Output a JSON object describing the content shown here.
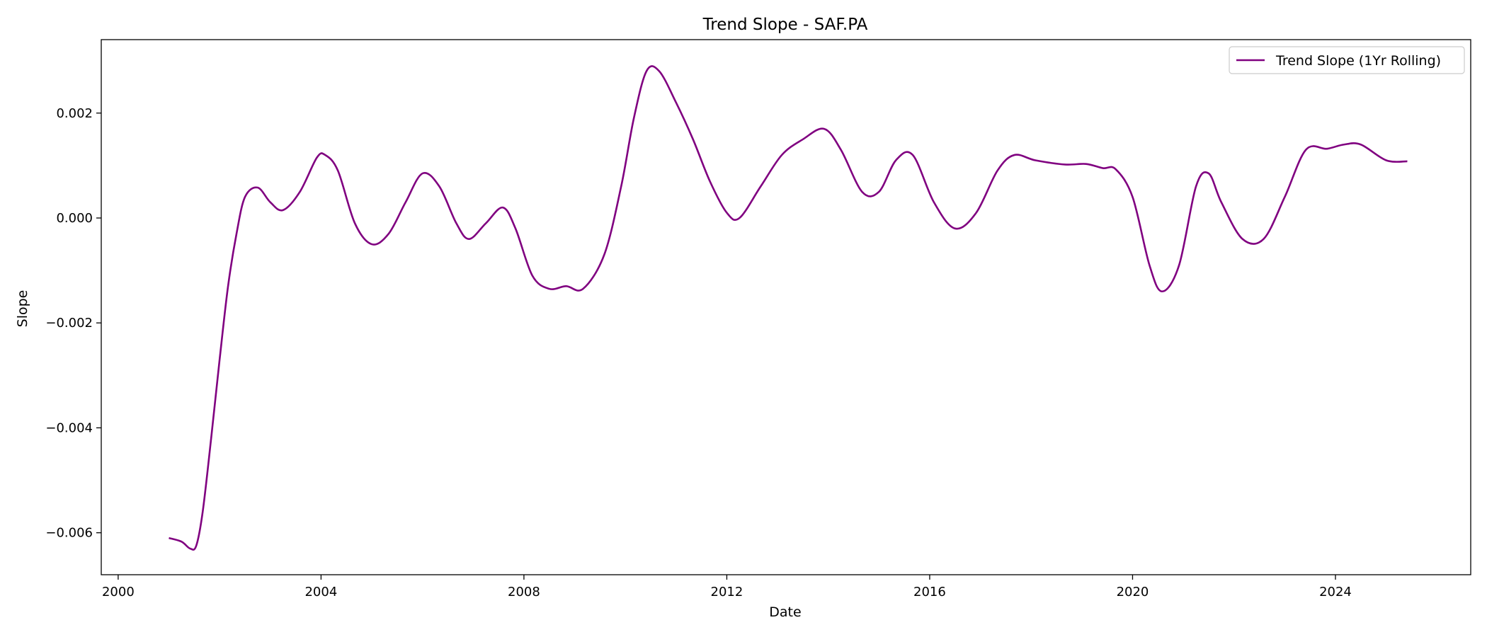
{
  "chart_data": {
    "type": "line",
    "title": "Trend Slope - SAF.PA",
    "xlabel": "Date",
    "ylabel": "Slope",
    "x_axis_type": "date",
    "xlim": [
      "1999-09-01",
      "2026-09-01"
    ],
    "ylim": [
      -0.0068,
      0.0034
    ],
    "x_ticks": [
      "2000",
      "2004",
      "2008",
      "2012",
      "2016",
      "2020",
      "2024"
    ],
    "y_ticks": [
      0.002,
      0.0,
      -0.002,
      -0.004,
      -0.006
    ],
    "y_tick_labels": [
      "0.002",
      "0.000",
      "−0.002",
      "−0.004",
      "−0.006"
    ],
    "grid": false,
    "legend_position": "top-right",
    "series": [
      {
        "name": "Trend Slope (1Yr Rolling)",
        "color": "#800080",
        "points": [
          [
            "2001-01-01",
            -0.0061
          ],
          [
            "2001-04-01",
            -0.00617
          ],
          [
            "2001-06-01",
            -0.0063
          ],
          [
            "2001-07-15",
            -0.00625
          ],
          [
            "2001-09-01",
            -0.0056
          ],
          [
            "2001-11-01",
            -0.0042
          ],
          [
            "2002-01-01",
            -0.0027
          ],
          [
            "2002-03-01",
            -0.0013
          ],
          [
            "2002-05-01",
            -0.0003
          ],
          [
            "2002-07-01",
            0.0004
          ],
          [
            "2002-10-01",
            0.00058
          ],
          [
            "2003-01-01",
            0.0003
          ],
          [
            "2003-04-01",
            0.00015
          ],
          [
            "2003-08-01",
            0.0005
          ],
          [
            "2003-12-01",
            0.00115
          ],
          [
            "2004-02-01",
            0.0012
          ],
          [
            "2004-05-01",
            0.0009
          ],
          [
            "2004-09-01",
            -0.0001
          ],
          [
            "2005-01-01",
            -0.0005
          ],
          [
            "2005-05-01",
            -0.0003
          ],
          [
            "2005-09-01",
            0.0003
          ],
          [
            "2006-01-01",
            0.00085
          ],
          [
            "2006-05-01",
            0.0006
          ],
          [
            "2006-09-01",
            -0.0001
          ],
          [
            "2006-12-01",
            -0.0004
          ],
          [
            "2007-04-01",
            -0.0001
          ],
          [
            "2007-08-01",
            0.0002
          ],
          [
            "2007-11-01",
            -0.0002
          ],
          [
            "2008-03-01",
            -0.0011
          ],
          [
            "2008-07-01",
            -0.00135
          ],
          [
            "2008-11-01",
            -0.0013
          ],
          [
            "2009-03-01",
            -0.00135
          ],
          [
            "2009-08-01",
            -0.0007
          ],
          [
            "2009-12-01",
            0.0006
          ],
          [
            "2010-03-01",
            0.0019
          ],
          [
            "2010-06-01",
            0.0028
          ],
          [
            "2010-09-01",
            0.0028
          ],
          [
            "2011-01-01",
            0.0022
          ],
          [
            "2011-05-01",
            0.0015
          ],
          [
            "2011-09-01",
            0.0007
          ],
          [
            "2012-01-01",
            0.0001
          ],
          [
            "2012-04-01",
            0.0
          ],
          [
            "2012-09-01",
            0.0006
          ],
          [
            "2013-02-01",
            0.0012
          ],
          [
            "2013-07-01",
            0.0015
          ],
          [
            "2013-12-01",
            0.0017
          ],
          [
            "2014-04-01",
            0.0013
          ],
          [
            "2014-09-01",
            0.0005
          ],
          [
            "2015-01-01",
            0.0005
          ],
          [
            "2015-05-01",
            0.0011
          ],
          [
            "2015-09-01",
            0.0012
          ],
          [
            "2016-02-01",
            0.0003
          ],
          [
            "2016-07-01",
            -0.0002
          ],
          [
            "2016-12-01",
            0.0001
          ],
          [
            "2017-05-01",
            0.0009
          ],
          [
            "2017-09-01",
            0.0012
          ],
          [
            "2018-02-01",
            0.0011
          ],
          [
            "2018-09-01",
            0.00102
          ],
          [
            "2019-02-01",
            0.00103
          ],
          [
            "2019-06-01",
            0.00095
          ],
          [
            "2019-09-01",
            0.00093
          ],
          [
            "2020-01-01",
            0.0004
          ],
          [
            "2020-05-01",
            -0.0009
          ],
          [
            "2020-08-01",
            -0.0014
          ],
          [
            "2020-12-01",
            -0.0009
          ],
          [
            "2021-04-01",
            0.0006
          ],
          [
            "2021-07-01",
            0.00085
          ],
          [
            "2021-10-01",
            0.0003
          ],
          [
            "2022-03-01",
            -0.0004
          ],
          [
            "2022-08-01",
            -0.0004
          ],
          [
            "2023-01-01",
            0.0004
          ],
          [
            "2023-06-01",
            0.0013
          ],
          [
            "2023-11-01",
            0.00132
          ],
          [
            "2024-03-01",
            0.0014
          ],
          [
            "2024-07-01",
            0.0014
          ],
          [
            "2025-01-01",
            0.0011
          ],
          [
            "2025-06-01",
            0.00108
          ]
        ]
      }
    ]
  }
}
